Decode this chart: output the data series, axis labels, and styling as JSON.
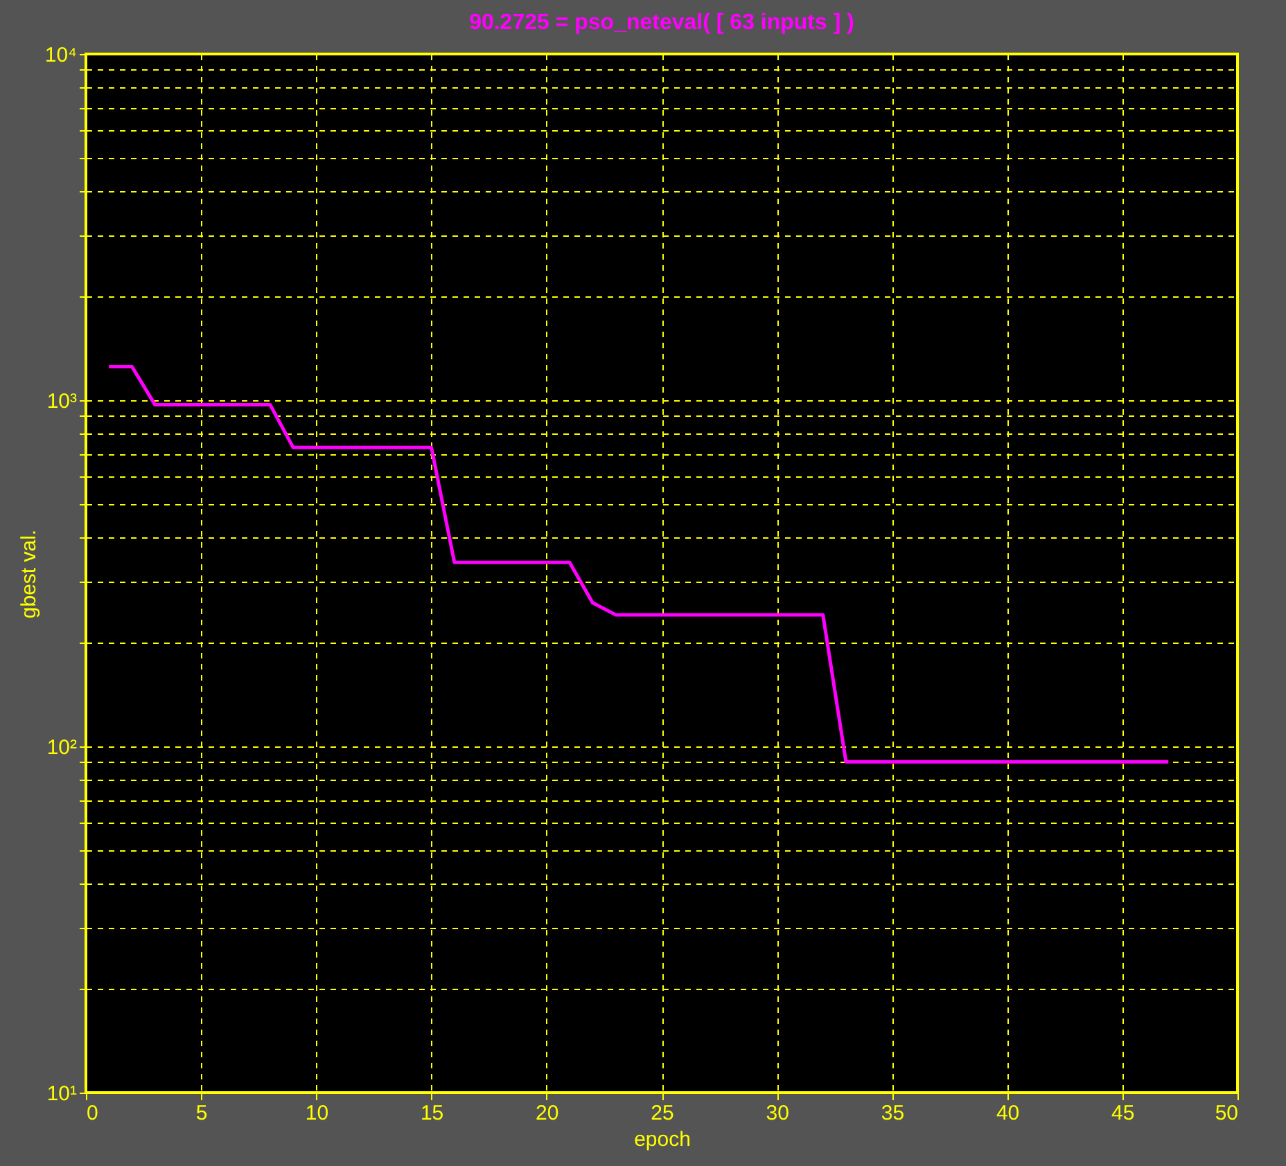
{
  "chart_data": {
    "type": "line",
    "title": "90.2725 = pso_neteval( [ 63 inputs ] )",
    "xlabel": "epoch",
    "ylabel": "gbest val.",
    "log": "y",
    "grid": true,
    "x": [
      1,
      2,
      3,
      8,
      9,
      15,
      16,
      21,
      22,
      23,
      32,
      33,
      47
    ],
    "series": [
      {
        "color": "#ff00ff",
        "values": [
          1250,
          1250,
          970,
          970,
          730,
          730,
          340,
          340,
          260,
          240,
          240,
          90.2725,
          90.2725
        ]
      }
    ],
    "xlim": [
      0,
      50
    ],
    "xticks": [
      0,
      5,
      10,
      15,
      20,
      25,
      30,
      35,
      40,
      45,
      50
    ],
    "ylim": [
      10,
      10000
    ],
    "yticks": [
      {
        "value": 10,
        "label": "10¹"
      },
      {
        "value": 20,
        "label": null
      },
      {
        "value": 30,
        "label": null
      },
      {
        "value": 40,
        "label": null
      },
      {
        "value": 50,
        "label": null
      },
      {
        "value": 60,
        "label": null
      },
      {
        "value": 70,
        "label": null
      },
      {
        "value": 80,
        "label": null
      },
      {
        "value": 90,
        "label": null
      },
      {
        "value": 100,
        "label": "10²"
      },
      {
        "value": 200,
        "label": null
      },
      {
        "value": 300,
        "label": null
      },
      {
        "value": 400,
        "label": null
      },
      {
        "value": 500,
        "label": null
      },
      {
        "value": 600,
        "label": null
      },
      {
        "value": 700,
        "label": null
      },
      {
        "value": 800,
        "label": null
      },
      {
        "value": 900,
        "label": null
      },
      {
        "value": 1000,
        "label": "10³"
      },
      {
        "value": 2000,
        "label": null
      },
      {
        "value": 3000,
        "label": null
      },
      {
        "value": 4000,
        "label": null
      },
      {
        "value": 5000,
        "label": null
      },
      {
        "value": 6000,
        "label": null
      },
      {
        "value": 7000,
        "label": null
      },
      {
        "value": 8000,
        "label": null
      },
      {
        "value": 9000,
        "label": null
      },
      {
        "value": 10000,
        "label": "10⁴"
      }
    ]
  }
}
